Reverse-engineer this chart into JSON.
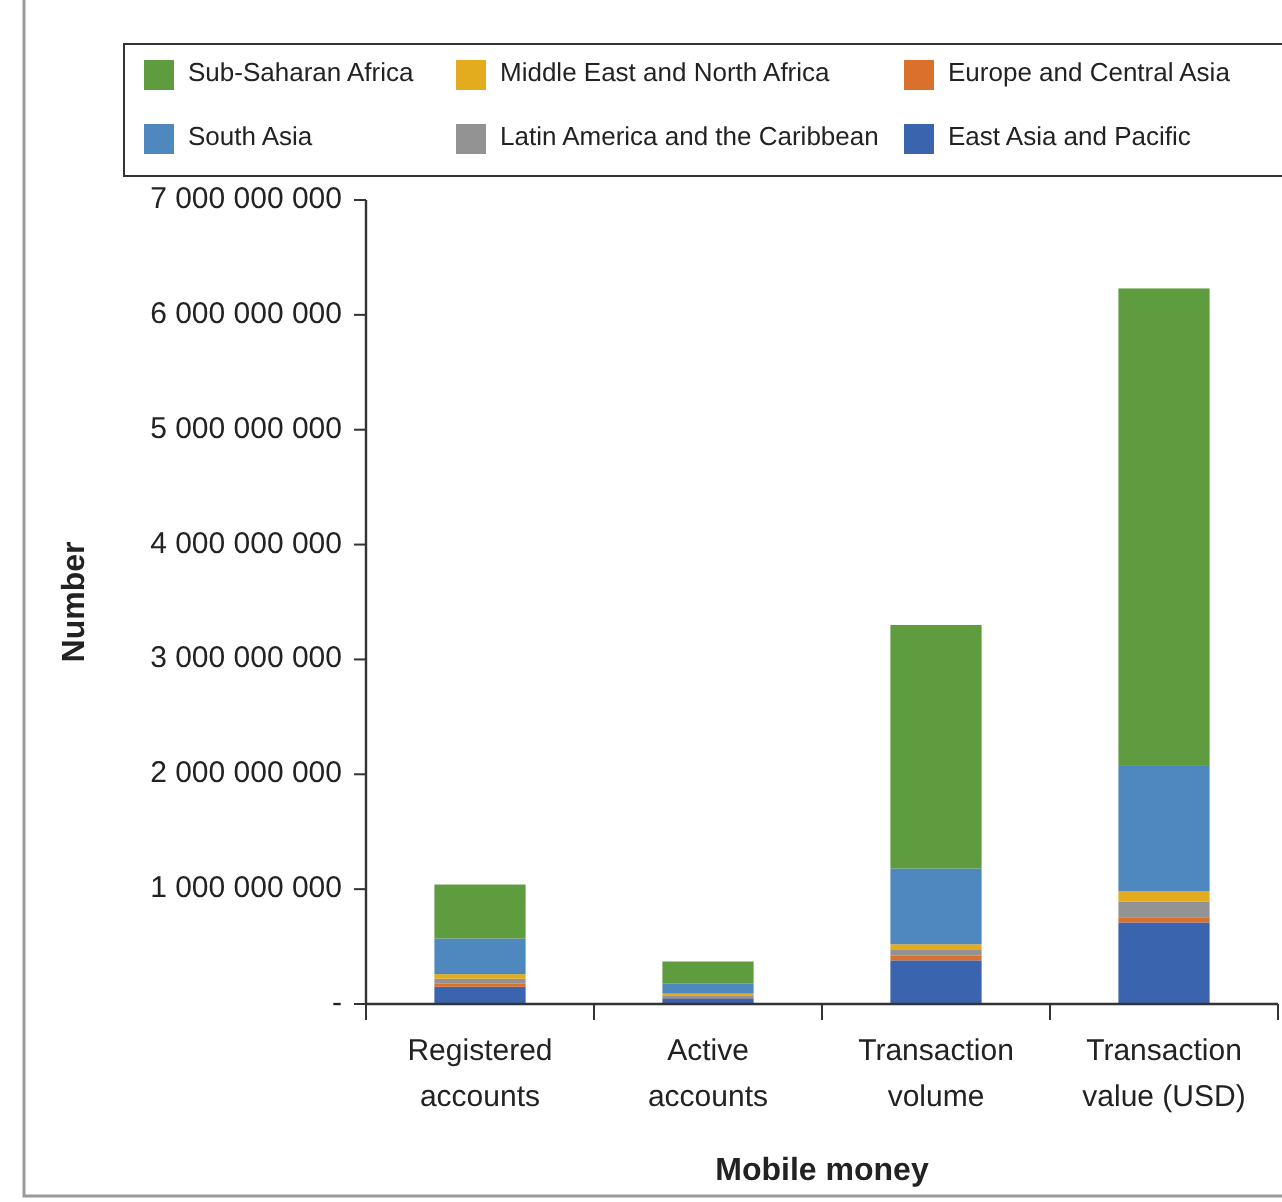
{
  "chart_data": {
    "type": "bar",
    "stacked": true,
    "xlabel": "Mobile money",
    "ylabel": "Number",
    "categories": [
      "Registered accounts",
      "Active accounts",
      "Transaction volume",
      "Transaction value (USD)"
    ],
    "series": [
      {
        "name": "East Asia and Pacific",
        "color": "#3a64ae",
        "values": [
          150000000,
          50000000,
          380000000,
          710000000
        ]
      },
      {
        "name": "Europe and Central Asia",
        "color": "#d9702b",
        "values": [
          30000000,
          10000000,
          40000000,
          40000000
        ]
      },
      {
        "name": "Latin America and the Caribbean",
        "color": "#939393",
        "values": [
          40000000,
          10000000,
          50000000,
          140000000
        ]
      },
      {
        "name": "Middle East and North Africa",
        "color": "#e2ac1e",
        "values": [
          40000000,
          20000000,
          50000000,
          90000000
        ]
      },
      {
        "name": "South Asia",
        "color": "#4e88bf",
        "values": [
          310000000,
          90000000,
          660000000,
          1100000000
        ]
      },
      {
        "name": "Sub-Saharan Africa",
        "color": "#5f9b3f",
        "values": [
          470000000,
          190000000,
          2120000000,
          4150000000
        ]
      }
    ],
    "ylim": [
      0,
      7000000000
    ],
    "yticks": [
      {
        "value": 0,
        "label": "-"
      },
      {
        "value": 1000000000,
        "label": "1 000 000 000"
      },
      {
        "value": 2000000000,
        "label": "2 000 000 000"
      },
      {
        "value": 3000000000,
        "label": "3 000 000 000"
      },
      {
        "value": 4000000000,
        "label": "4 000 000 000"
      },
      {
        "value": 5000000000,
        "label": "5 000 000 000"
      },
      {
        "value": 6000000000,
        "label": "6 000 000 000"
      },
      {
        "value": 7000000000,
        "label": "7 000 000 000"
      }
    ],
    "grid": false,
    "legend": "top"
  }
}
